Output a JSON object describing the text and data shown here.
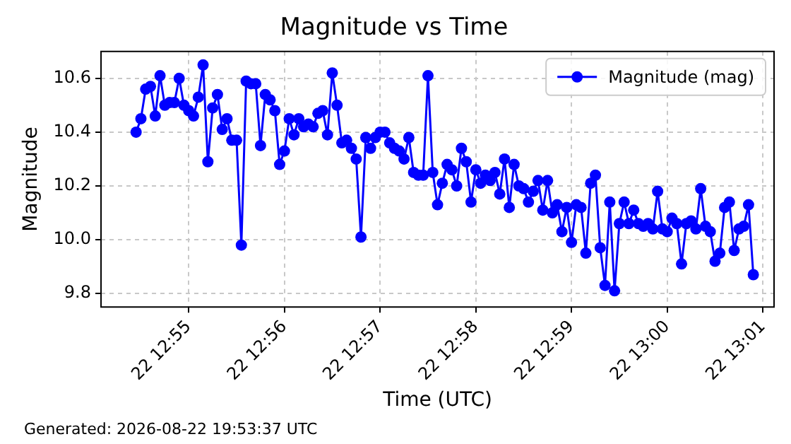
{
  "chart_data": {
    "type": "line",
    "title": "Magnitude vs Time",
    "xlabel": "Time (UTC)",
    "ylabel": "Magnitude",
    "annotations": [
      "Generated: 2026-08-22 19:53:37 UTC"
    ],
    "x": [
      "--08-22T12:54:27",
      "--08-22T12:54:30",
      "--08-22T12:54:33",
      "--08-22T12:54:36",
      "--08-22T12:54:39",
      "--08-22T12:54:42",
      "--08-22T12:54:45",
      "--08-22T12:54:48",
      "--08-22T12:54:51",
      "--08-22T12:54:54",
      "--08-22T12:54:57",
      "--08-22T12:55:00",
      "--08-22T12:55:03",
      "--08-22T12:55:06",
      "--08-22T12:55:09",
      "--08-22T12:55:12",
      "--08-22T12:55:15",
      "--08-22T12:55:18",
      "--08-22T12:55:21",
      "--08-22T12:55:24",
      "--08-22T12:55:27",
      "--08-22T12:55:30",
      "--08-22T12:55:33",
      "--08-22T12:55:36",
      "--08-22T12:55:39",
      "--08-22T12:55:42",
      "--08-22T12:55:45",
      "--08-22T12:55:48",
      "--08-22T12:55:51",
      "--08-22T12:55:54",
      "--08-22T12:55:57",
      "--08-22T12:56:00",
      "--08-22T12:56:03",
      "--08-22T12:56:06",
      "--08-22T12:56:09",
      "--08-22T12:56:12",
      "--08-22T12:56:15",
      "--08-22T12:56:18",
      "--08-22T12:56:21",
      "--08-22T12:56:24",
      "--08-22T12:56:27",
      "--08-22T12:56:30",
      "--08-22T12:56:33",
      "--08-22T12:56:36",
      "--08-22T12:56:39",
      "--08-22T12:56:42",
      "--08-22T12:56:45",
      "--08-22T12:56:48",
      "--08-22T12:56:51",
      "--08-22T12:56:54",
      "--08-22T12:56:57",
      "--08-22T12:57:00",
      "--08-22T12:57:03",
      "--08-22T12:57:06",
      "--08-22T12:57:09",
      "--08-22T12:57:12",
      "--08-22T12:57:15",
      "--08-22T12:57:18",
      "--08-22T12:57:21",
      "--08-22T12:57:24",
      "--08-22T12:57:27",
      "--08-22T12:57:30",
      "--08-22T12:57:33",
      "--08-22T12:57:36",
      "--08-22T12:57:39",
      "--08-22T12:57:42",
      "--08-22T12:57:45",
      "--08-22T12:57:48",
      "--08-22T12:57:51",
      "--08-22T12:57:54",
      "--08-22T12:57:57",
      "--08-22T12:58:00",
      "--08-22T12:58:03",
      "--08-22T12:58:06",
      "--08-22T12:58:09",
      "--08-22T12:58:12",
      "--08-22T12:58:15",
      "--08-22T12:58:18",
      "--08-22T12:58:21",
      "--08-22T12:58:24",
      "--08-22T12:58:27",
      "--08-22T12:58:30",
      "--08-22T12:58:33",
      "--08-22T12:58:36",
      "--08-22T12:58:39",
      "--08-22T12:58:42",
      "--08-22T12:58:45",
      "--08-22T12:58:48",
      "--08-22T12:58:51",
      "--08-22T12:58:54",
      "--08-22T12:58:57",
      "--08-22T12:59:00",
      "--08-22T12:59:03",
      "--08-22T12:59:06",
      "--08-22T12:59:09",
      "--08-22T12:59:12",
      "--08-22T12:59:15",
      "--08-22T12:59:18",
      "--08-22T12:59:21",
      "--08-22T12:59:24",
      "--08-22T12:59:27",
      "--08-22T12:59:30",
      "--08-22T12:59:33",
      "--08-22T12:59:36",
      "--08-22T12:59:39",
      "--08-22T12:59:42",
      "--08-22T12:59:45",
      "--08-22T12:59:48",
      "--08-22T12:59:51",
      "--08-22T12:59:54",
      "--08-22T12:59:57",
      "--08-22T13:00:00",
      "--08-22T13:00:03",
      "--08-22T13:00:06",
      "--08-22T13:00:09",
      "--08-22T13:00:12",
      "--08-22T13:00:15",
      "--08-22T13:00:18",
      "--08-22T13:00:21",
      "--08-22T13:00:24",
      "--08-22T13:00:27",
      "--08-22T13:00:30",
      "--08-22T13:00:33",
      "--08-22T13:00:36",
      "--08-22T13:00:39",
      "--08-22T13:00:42",
      "--08-22T13:00:45",
      "--08-22T13:00:48",
      "--08-22T13:00:51",
      "--08-22T13:00:54"
    ],
    "series": [
      {
        "name": "Magnitude (mag)",
        "color": "#0000ff",
        "values": [
          10.4,
          10.45,
          10.56,
          10.57,
          10.46,
          10.61,
          10.5,
          10.51,
          10.51,
          10.6,
          10.5,
          10.48,
          10.46,
          10.53,
          10.65,
          10.29,
          10.49,
          10.54,
          10.41,
          10.45,
          10.37,
          10.37,
          9.98,
          10.59,
          10.58,
          10.58,
          10.35,
          10.54,
          10.52,
          10.48,
          10.28,
          10.33,
          10.45,
          10.39,
          10.45,
          10.42,
          10.43,
          10.42,
          10.47,
          10.48,
          10.39,
          10.62,
          10.5,
          10.36,
          10.37,
          10.34,
          10.3,
          10.01,
          10.38,
          10.34,
          10.38,
          10.4,
          10.4,
          10.36,
          10.34,
          10.33,
          10.3,
          10.38,
          10.25,
          10.24,
          10.24,
          10.61,
          10.25,
          10.13,
          10.21,
          10.28,
          10.26,
          10.2,
          10.34,
          10.29,
          10.14,
          10.26,
          10.21,
          10.24,
          10.22,
          10.25,
          10.17,
          10.3,
          10.12,
          10.28,
          10.2,
          10.19,
          10.14,
          10.18,
          10.22,
          10.11,
          10.22,
          10.1,
          10.13,
          10.03,
          10.12,
          9.99,
          10.13,
          10.12,
          9.95,
          10.21,
          10.24,
          9.97,
          9.83,
          10.14,
          9.81,
          10.06,
          10.14,
          10.06,
          10.11,
          10.06,
          10.05,
          10.06,
          10.04,
          10.18,
          10.04,
          10.03,
          10.08,
          10.06,
          9.91,
          10.06,
          10.07,
          10.04,
          10.19,
          10.05,
          10.03,
          9.92,
          9.95,
          10.12,
          10.14,
          9.96,
          10.04,
          10.05,
          10.13,
          9.87
        ]
      }
    ],
    "xlim": [
      "--08-22T12:54:05",
      "--08-22T13:01:07"
    ],
    "xticks": [
      {
        "value": "--08-22T12:55",
        "label": "22 12:55"
      },
      {
        "value": "--08-22T12:56",
        "label": "22 12:56"
      },
      {
        "value": "--08-22T12:57",
        "label": "22 12:57"
      },
      {
        "value": "--08-22T12:58",
        "label": "22 12:58"
      },
      {
        "value": "--08-22T12:59",
        "label": "22 12:59"
      },
      {
        "value": "--08-22T13:00",
        "label": "22 13:00"
      },
      {
        "value": "--08-22T13:01",
        "label": "22 13:01"
      }
    ],
    "ylim": [
      9.75,
      10.7
    ],
    "yticks": [
      9.8,
      {
        "value": 10,
        "label": "10.0"
      },
      10.2,
      10.4,
      10.6
    ],
    "grid": true,
    "legend": "top right",
    "marker": "circle",
    "line_style": "solid"
  }
}
